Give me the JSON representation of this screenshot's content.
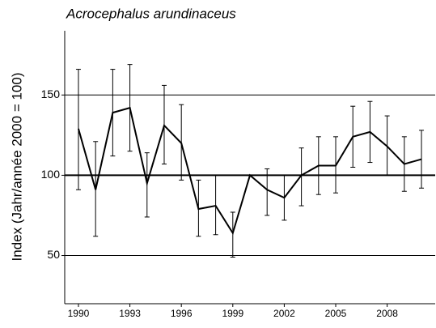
{
  "chart_data": {
    "type": "line",
    "title": "Acrocephalus arundinaceus",
    "y_label": "Index (Jahr/année 2000 = 100)",
    "x": [
      1990,
      1991,
      1992,
      1993,
      1994,
      1995,
      1996,
      1997,
      1998,
      1999,
      2000,
      2001,
      2002,
      2003,
      2004,
      2005,
      2006,
      2007,
      2008,
      2009,
      2010
    ],
    "series": [
      {
        "color": "#000000",
        "values": [
          129,
          91,
          139,
          142,
          95,
          131,
          120,
          79,
          81,
          64,
          100,
          91,
          86,
          100,
          106,
          106,
          124,
          127,
          118,
          107,
          110
        ],
        "upper": [
          166,
          121,
          166,
          169,
          114,
          156,
          144,
          97,
          100,
          77,
          null,
          104,
          100,
          117,
          124,
          124,
          143,
          146,
          137,
          124,
          128
        ],
        "lower": [
          91,
          62,
          112,
          115,
          74,
          107,
          97,
          62,
          63,
          49,
          null,
          75,
          72,
          81,
          88,
          89,
          105,
          108,
          100,
          90,
          92
        ]
      }
    ],
    "xlim": [
      1989.2,
      2010.8
    ],
    "xticks": [
      1990,
      1993,
      1996,
      1999,
      2002,
      2005,
      2008
    ],
    "ylim": [
      20,
      190
    ],
    "yticks": [
      50,
      100,
      150
    ],
    "grid": true,
    "reference_line": 100
  }
}
